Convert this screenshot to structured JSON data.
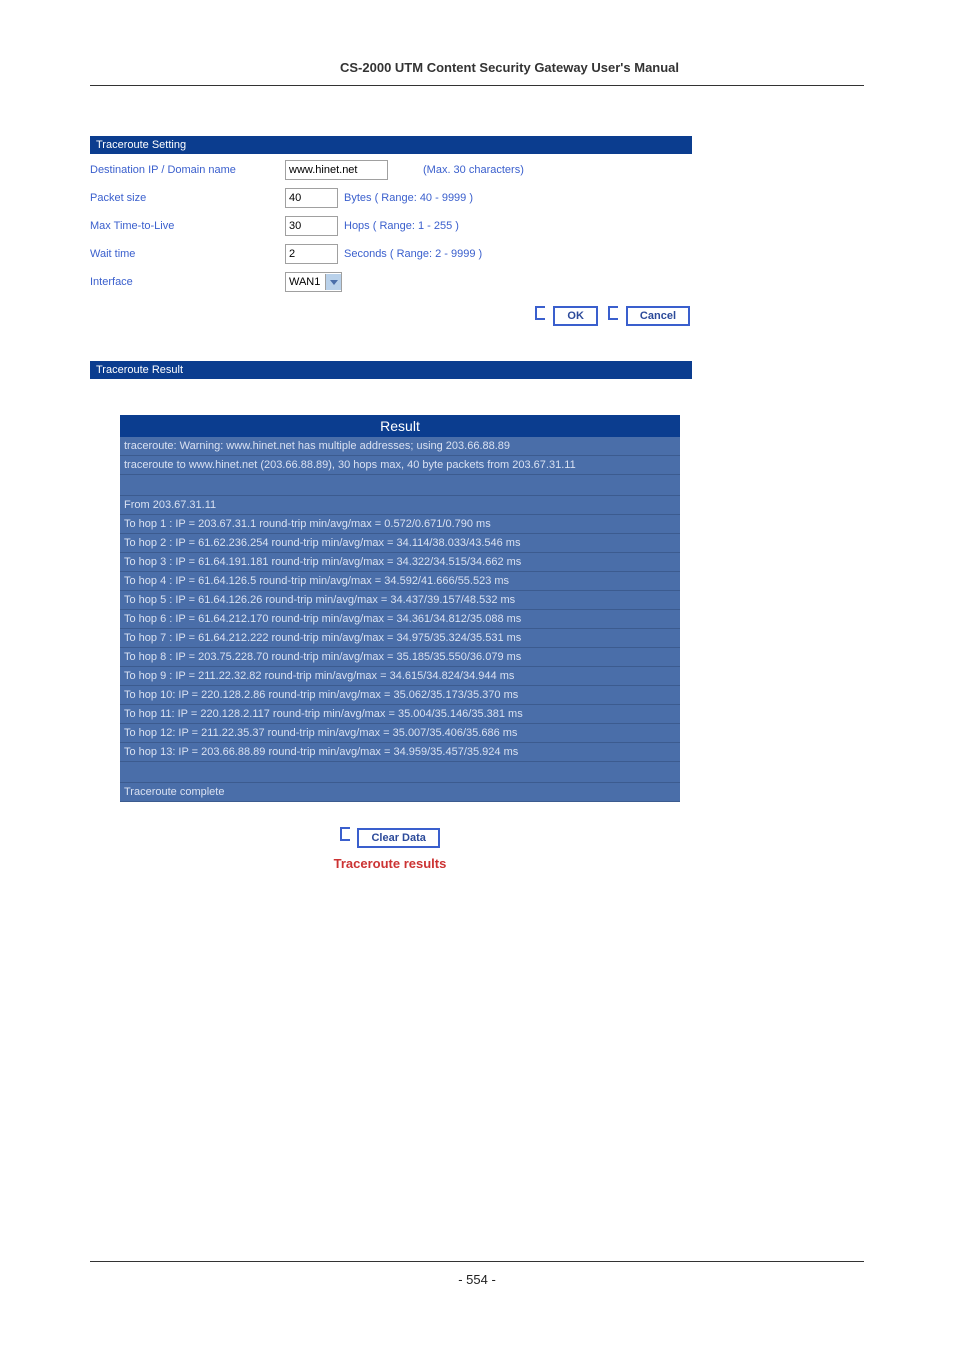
{
  "header": "CS-2000 UTM Content Security Gateway User's Manual",
  "sections": {
    "setting_title": "Traceroute Setting",
    "result_title": "Traceroute Result"
  },
  "form": {
    "dest_label": "Destination IP / Domain name",
    "dest_value": "www.hinet.net",
    "dest_hint": "(Max. 30 characters)",
    "packet_label": "Packet size",
    "packet_value": "40",
    "packet_hint": "Bytes  ( Range: 40 - 9999 )",
    "ttl_label": "Max Time-to-Live",
    "ttl_value": "30",
    "ttl_hint": "Hops  ( Range: 1 - 255 )",
    "wait_label": "Wait time",
    "wait_value": "2",
    "wait_hint": "Seconds  ( Range: 2 - 9999 )",
    "iface_label": "Interface",
    "iface_value": "WAN1"
  },
  "buttons": {
    "ok": "OK",
    "cancel": "Cancel",
    "clear": "Clear Data"
  },
  "result": {
    "header": "Result",
    "rows": [
      "traceroute: Warning: www.hinet.net has multiple addresses; using 203.66.88.89",
      "traceroute to www.hinet.net (203.66.88.89), 30 hops max, 40 byte packets from 203.67.31.11",
      "",
      "From 203.67.31.11",
      "To hop 1 : IP = 203.67.31.1  round-trip min/avg/max = 0.572/0.671/0.790 ms",
      "To hop 2 : IP = 61.62.236.254  round-trip min/avg/max = 34.114/38.033/43.546 ms",
      "To hop 3 : IP = 61.64.191.181  round-trip min/avg/max = 34.322/34.515/34.662 ms",
      "To hop 4 : IP = 61.64.126.5  round-trip min/avg/max = 34.592/41.666/55.523 ms",
      "To hop 5 : IP = 61.64.126.26  round-trip min/avg/max = 34.437/39.157/48.532 ms",
      "To hop 6 : IP = 61.64.212.170  round-trip min/avg/max = 34.361/34.812/35.088 ms",
      "To hop 7 : IP = 61.64.212.222  round-trip min/avg/max = 34.975/35.324/35.531 ms",
      "To hop 8 : IP = 203.75.228.70  round-trip min/avg/max = 35.185/35.550/36.079 ms",
      "To hop 9 : IP = 211.22.32.82  round-trip min/avg/max = 34.615/34.824/34.944 ms",
      "To hop 10: IP = 220.128.2.86  round-trip min/avg/max = 35.062/35.173/35.370 ms",
      "To hop 11: IP = 220.128.2.117  round-trip min/avg/max = 35.004/35.146/35.381 ms",
      "To hop 12: IP = 211.22.35.37  round-trip min/avg/max = 35.007/35.406/35.686 ms",
      "To hop 13: IP = 203.66.88.89  round-trip min/avg/max = 34.959/35.457/35.924 ms",
      "",
      "Traceroute complete"
    ]
  },
  "caption": "Traceroute results",
  "page_number": "- 554 -",
  "colors": {
    "header_bg": "#0b3d8f",
    "row_bg": "#4a6ea9",
    "label": "#3a5fcd",
    "caption": "#cc3333"
  }
}
